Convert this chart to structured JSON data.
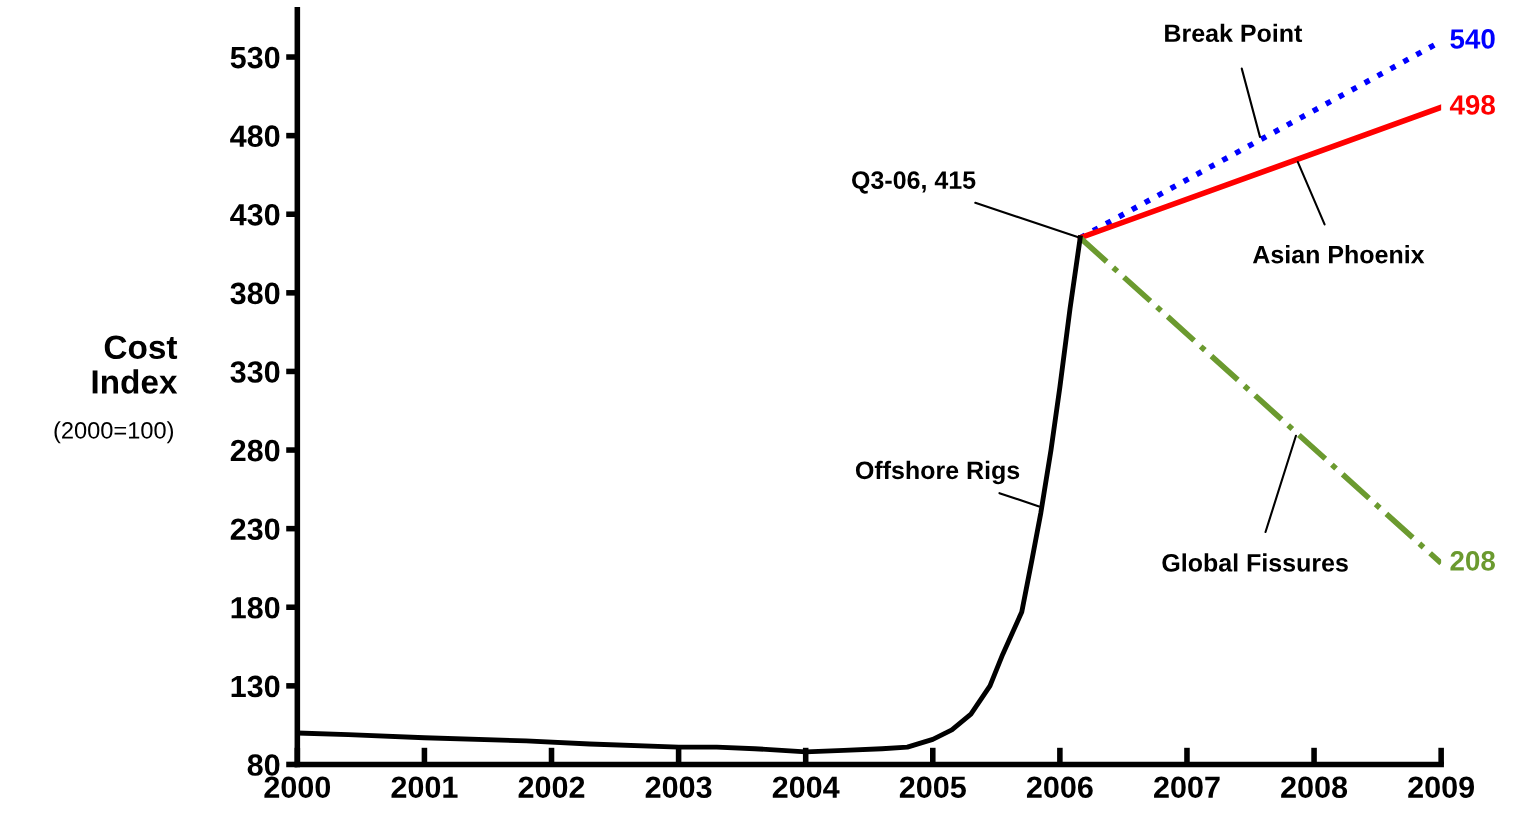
{
  "chart_data": {
    "type": "line",
    "ylabel": "Cost Index",
    "annotations": [
      "(2000=100)",
      {
        "text": "Q3-06, 415",
        "x": 2006.16,
        "y": 415
      }
    ],
    "xlim": [
      2000,
      2009
    ],
    "xticks": [
      2000,
      2001,
      2002,
      2003,
      2004,
      2005,
      2006,
      2007,
      2008,
      2009
    ],
    "ylim": [
      80,
      560
    ],
    "yticks": [
      80,
      130,
      180,
      230,
      280,
      330,
      380,
      430,
      480,
      530
    ],
    "grid": false,
    "legend": false,
    "series": [
      {
        "name": "Offshore Rigs",
        "color": "#000000",
        "line_style": "solid",
        "x": [
          2000,
          2000.4,
          2001,
          2001.8,
          2002.3,
          2003,
          2003.3,
          2003.6,
          2004,
          2004.3,
          2004.6,
          2004.8,
          2005,
          2005.15,
          2005.3,
          2005.45,
          2005.55,
          2005.7,
          2005.78,
          2005.85,
          2005.93,
          2006.0,
          2006.08,
          2006.16
        ],
        "values": [
          100,
          99,
          97,
          95,
          93,
          91,
          91,
          90,
          88,
          89,
          90,
          91,
          96,
          102,
          112,
          130,
          150,
          177,
          210,
          240,
          280,
          320,
          370,
          415
        ]
      },
      {
        "name": "Break Point",
        "color": "#0000ff",
        "line_style": "dotted",
        "x": [
          2006.16,
          2009
        ],
        "values": [
          415,
          540
        ],
        "value_labels": [
          null,
          "540"
        ]
      },
      {
        "name": "Asian Phoenix",
        "color": "#ff0000",
        "line_style": "solid",
        "x": [
          2006.16,
          2009
        ],
        "values": [
          415,
          498
        ],
        "value_labels": [
          null,
          "498"
        ]
      },
      {
        "name": "Global Fissures",
        "color": "#6b9a2f",
        "line_style": "dashdot",
        "x": [
          2006.16,
          2009
        ],
        "values": [
          415,
          208
        ],
        "value_labels": [
          null,
          "208"
        ]
      }
    ]
  }
}
